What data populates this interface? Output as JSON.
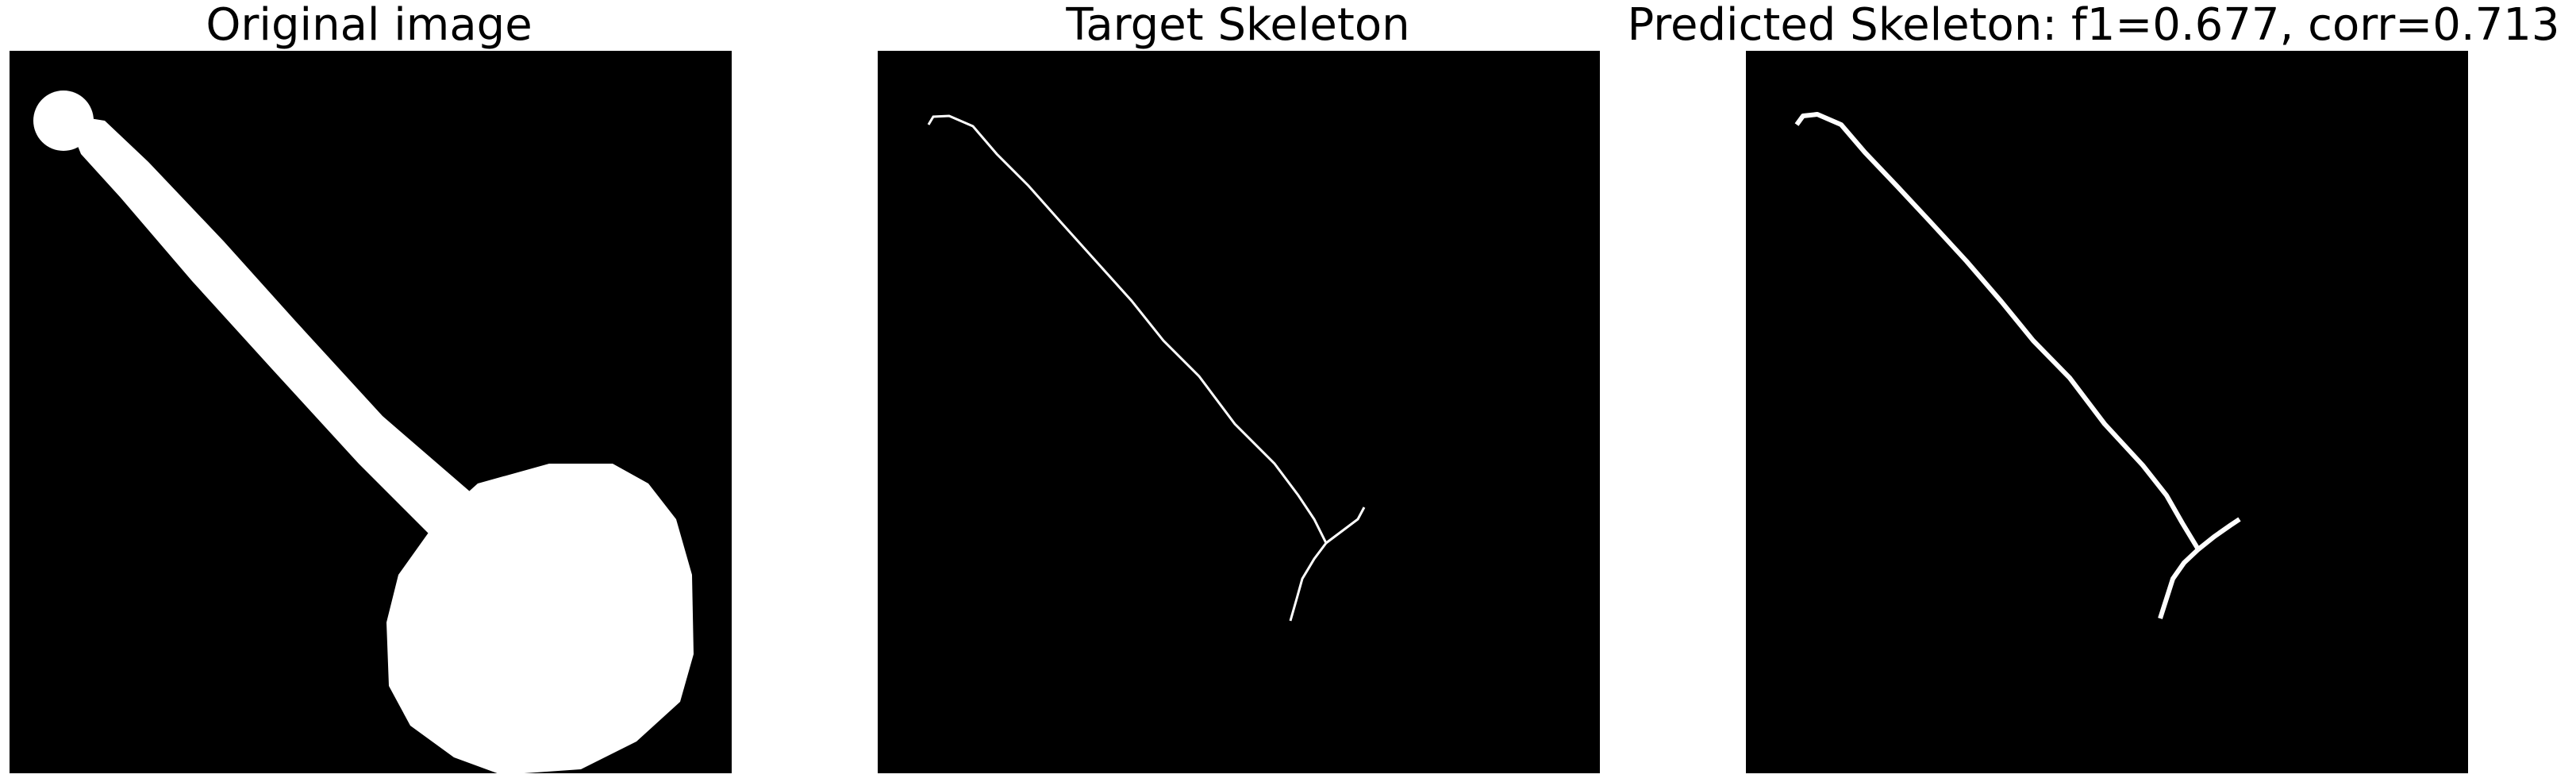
{
  "figure": {
    "panels": [
      {
        "title": "Original image"
      },
      {
        "title": "Target Skeleton"
      },
      {
        "title": "Predicted Skeleton: f1=0.677, corr=0.713"
      }
    ]
  },
  "colors": {
    "background": "#000000",
    "foreground": "#ffffff"
  }
}
